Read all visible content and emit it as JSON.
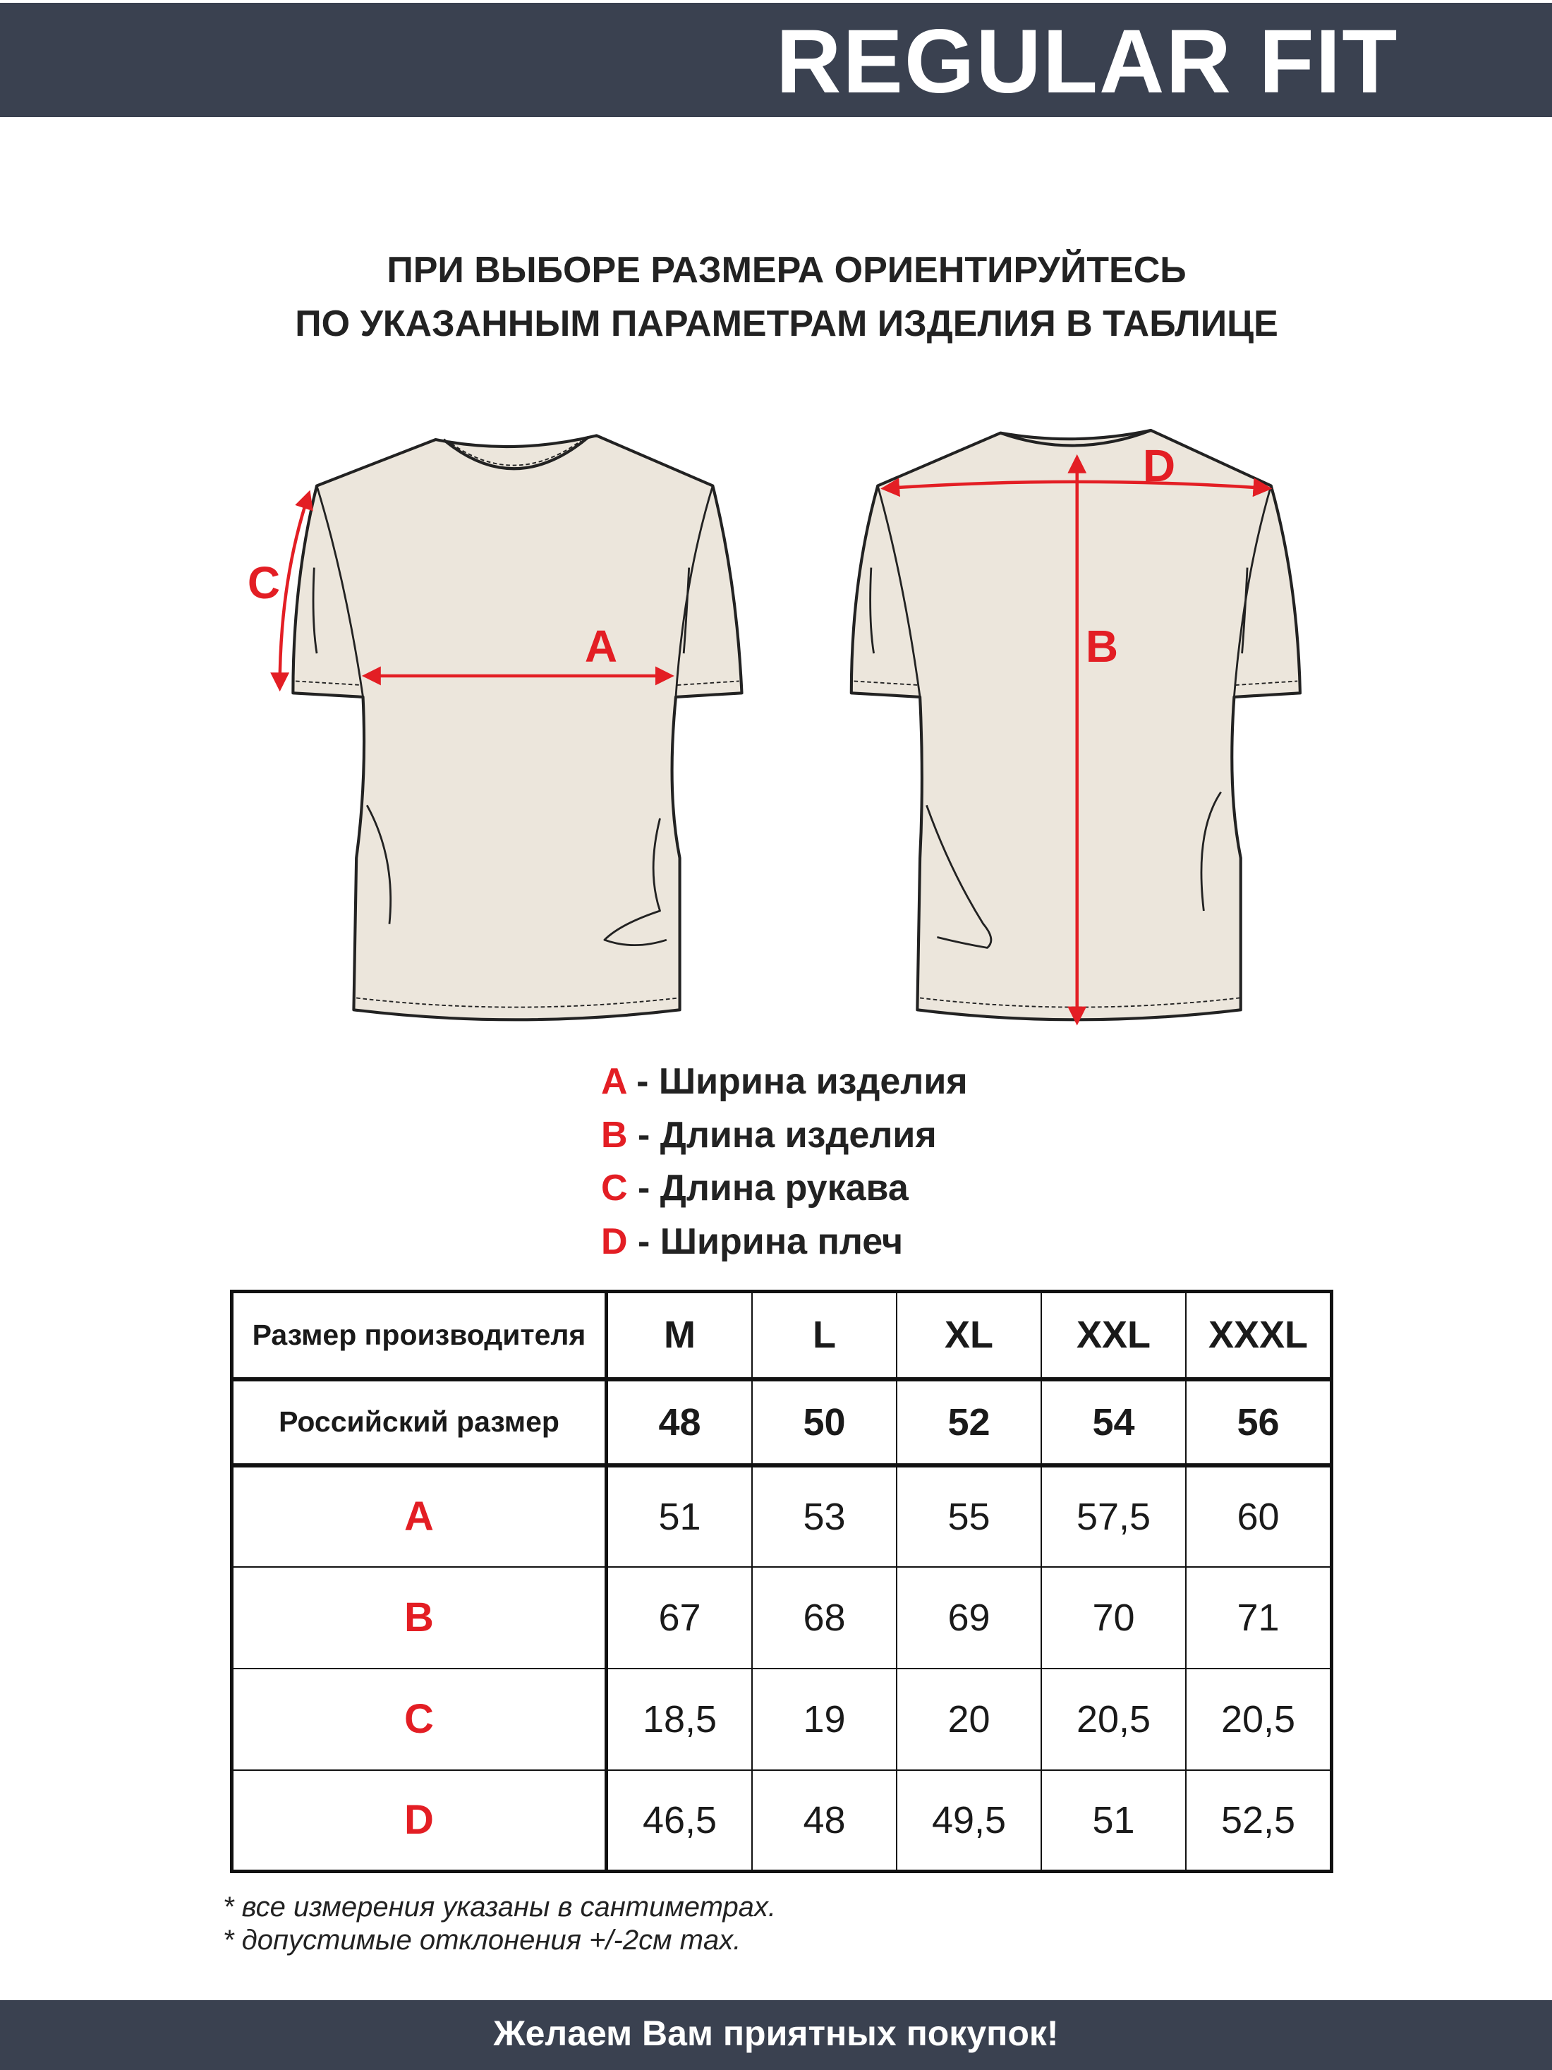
{
  "header": {
    "title": "REGULAR FIT",
    "background_color": "#3a4150"
  },
  "heading": {
    "line1": "ПРИ ВЫБОРЕ РАЗМЕРА ОРИЕНТИРУЙТЕСЬ",
    "line2": "ПО УКАЗАННЫМ ПАРАМЕТРАМ ИЗДЕЛИЯ В ТАБЛИЦЕ"
  },
  "diagram": {
    "labels": {
      "A": "A",
      "B": "B",
      "C": "C",
      "D": "D"
    },
    "shirt_color": "#ece6dc",
    "measure_color": "#e31e24"
  },
  "legend": [
    {
      "key": "A",
      "text": " - Ширина изделия"
    },
    {
      "key": "B",
      "text": " - Длина изделия"
    },
    {
      "key": "C",
      "text": " - Длина рукава"
    },
    {
      "key": "D",
      "text": " - Ширина плеч"
    }
  ],
  "table": {
    "header_label": "Размер производителя",
    "sizes": [
      "M",
      "L",
      "XL",
      "XXL",
      "XXXL"
    ],
    "ru_label": "Российский размер",
    "ru_sizes": [
      "48",
      "50",
      "52",
      "54",
      "56"
    ],
    "rows": [
      {
        "key": "A",
        "values": [
          "51",
          "53",
          "55",
          "57,5",
          "60"
        ]
      },
      {
        "key": "B",
        "values": [
          "67",
          "68",
          "69",
          "70",
          "71"
        ]
      },
      {
        "key": "C",
        "values": [
          "18,5",
          "19",
          "20",
          "20,5",
          "20,5"
        ]
      },
      {
        "key": "D",
        "values": [
          "46,5",
          "48",
          "49,5",
          "51",
          "52,5"
        ]
      }
    ]
  },
  "notes": [
    "* все измерения указаны в сантиметрах.",
    "* допустимые отклонения +/-2см max."
  ],
  "footer": {
    "text": "Желаем Вам приятных покупок!"
  }
}
